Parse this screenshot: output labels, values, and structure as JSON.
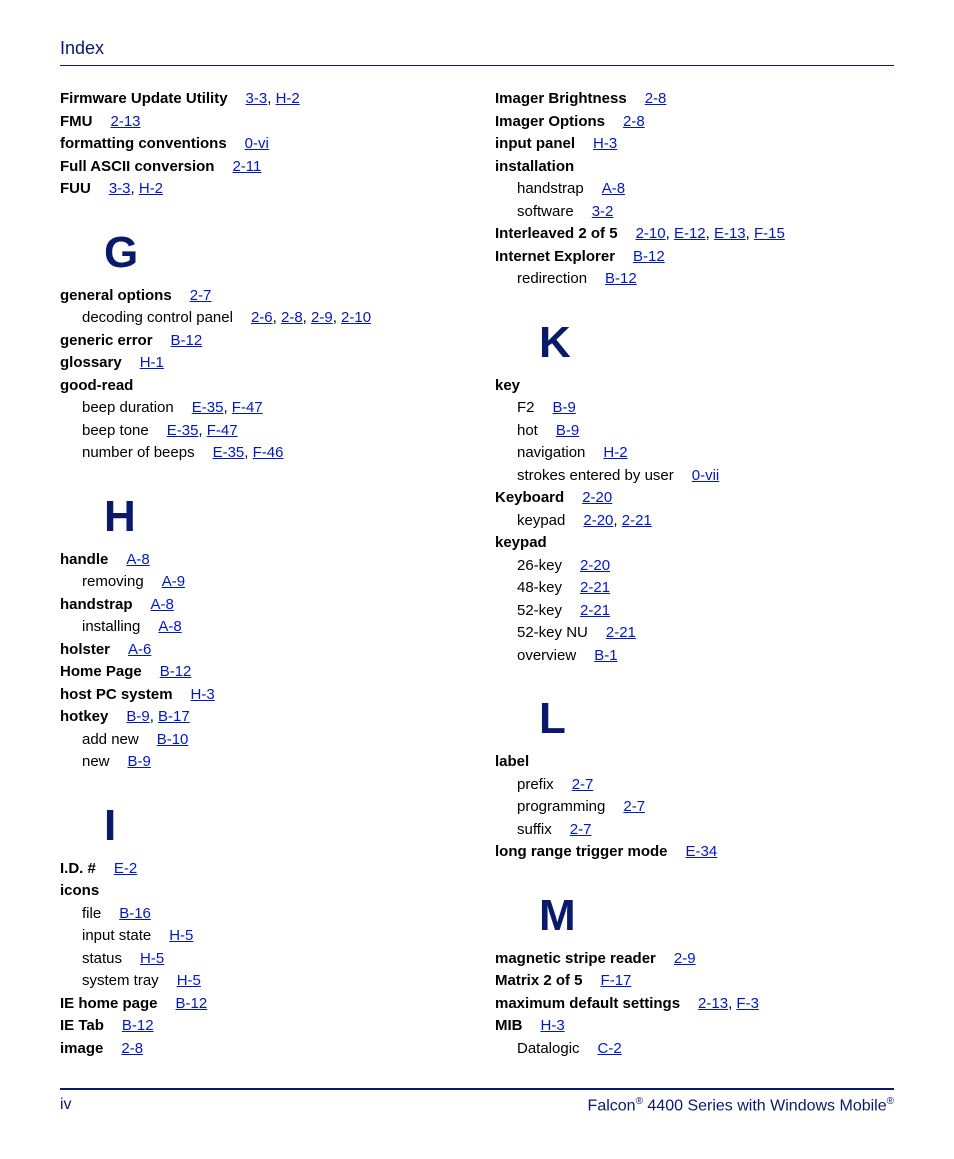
{
  "header": {
    "title": "Index"
  },
  "footer": {
    "page_num": "iv",
    "product_line": "Falcon® 4400 Series with Windows Mobile®"
  },
  "colors": {
    "navy": "#0a1a6a",
    "link": "#0018c4",
    "text": "#000000",
    "bg": "#ffffff"
  },
  "typography": {
    "heading_size_pt": 14,
    "letter_size_pt": 33,
    "body_size_pt": 11,
    "footer_size_pt": 12
  },
  "left_column": {
    "pre_entries": [
      {
        "term": "Firmware Update Utility",
        "refs": [
          "3-3",
          "H-2"
        ]
      },
      {
        "term": "FMU",
        "refs": [
          "2-13"
        ]
      },
      {
        "term": "formatting conventions",
        "refs": [
          "0-vi"
        ]
      },
      {
        "term": "Full ASCII conversion",
        "refs": [
          "2-11"
        ]
      },
      {
        "term": "FUU",
        "refs": [
          "3-3",
          "H-2"
        ]
      }
    ],
    "sections": [
      {
        "letter": "G",
        "entries": [
          {
            "term": "general options",
            "refs": [
              "2-7"
            ]
          },
          {
            "sub": true,
            "term": "decoding control panel",
            "refs": [
              "2-6",
              "2-8",
              "2-9",
              "2-10"
            ]
          },
          {
            "term": "generic error",
            "refs": [
              "B-12"
            ]
          },
          {
            "term": "glossary",
            "refs": [
              "H-1"
            ]
          },
          {
            "term": "good-read",
            "refs": []
          },
          {
            "sub": true,
            "term": "beep duration",
            "refs": [
              "E-35",
              "F-47"
            ]
          },
          {
            "sub": true,
            "term": "beep tone",
            "refs": [
              "E-35",
              "F-47"
            ]
          },
          {
            "sub": true,
            "term": "number of beeps",
            "refs": [
              "E-35",
              "F-46"
            ]
          }
        ]
      },
      {
        "letter": "H",
        "entries": [
          {
            "term": "handle",
            "refs": [
              "A-8"
            ]
          },
          {
            "sub": true,
            "term": "removing",
            "refs": [
              "A-9"
            ]
          },
          {
            "term": "handstrap",
            "refs": [
              "A-8"
            ]
          },
          {
            "sub": true,
            "term": "installing",
            "refs": [
              "A-8"
            ]
          },
          {
            "term": "holster",
            "refs": [
              "A-6"
            ]
          },
          {
            "term": "Home Page",
            "refs": [
              "B-12"
            ]
          },
          {
            "term": "host PC system",
            "refs": [
              "H-3"
            ]
          },
          {
            "term": "hotkey",
            "refs": [
              "B-9",
              "B-17"
            ]
          },
          {
            "sub": true,
            "term": "add new",
            "refs": [
              "B-10"
            ]
          },
          {
            "sub": true,
            "term": "new",
            "refs": [
              "B-9"
            ]
          }
        ]
      },
      {
        "letter": "I",
        "entries": [
          {
            "term": "I.D. #",
            "refs": [
              "E-2"
            ]
          },
          {
            "term": "icons",
            "refs": []
          },
          {
            "sub": true,
            "term": "file",
            "refs": [
              "B-16"
            ]
          },
          {
            "sub": true,
            "term": "input state",
            "refs": [
              "H-5"
            ]
          },
          {
            "sub": true,
            "term": "status",
            "refs": [
              "H-5"
            ]
          },
          {
            "sub": true,
            "term": "system tray",
            "refs": [
              "H-5"
            ]
          },
          {
            "term": "IE home page",
            "refs": [
              "B-12"
            ]
          },
          {
            "term": "IE Tab",
            "refs": [
              "B-12"
            ]
          },
          {
            "term": "image",
            "refs": [
              "2-8"
            ]
          }
        ]
      }
    ]
  },
  "right_column": {
    "pre_entries": [
      {
        "term": "Imager Brightness",
        "refs": [
          "2-8"
        ]
      },
      {
        "term": "Imager Options",
        "refs": [
          "2-8"
        ]
      },
      {
        "term": "input panel",
        "refs": [
          "H-3"
        ]
      },
      {
        "term": "installation",
        "refs": []
      },
      {
        "sub": true,
        "term": "handstrap",
        "refs": [
          "A-8"
        ]
      },
      {
        "sub": true,
        "term": "software",
        "refs": [
          "3-2"
        ]
      },
      {
        "term": "Interleaved 2 of 5",
        "refs": [
          "2-10",
          "E-12",
          "E-13",
          "F-15"
        ]
      },
      {
        "term": "Internet Explorer",
        "refs": [
          "B-12"
        ]
      },
      {
        "sub": true,
        "term": "redirection",
        "refs": [
          "B-12"
        ]
      }
    ],
    "sections": [
      {
        "letter": "K",
        "entries": [
          {
            "term": "key",
            "refs": []
          },
          {
            "sub": true,
            "term": "F2",
            "refs": [
              "B-9"
            ]
          },
          {
            "sub": true,
            "term": "hot",
            "refs": [
              "B-9"
            ]
          },
          {
            "sub": true,
            "term": "navigation",
            "refs": [
              "H-2"
            ]
          },
          {
            "sub": true,
            "term": "strokes entered by user",
            "refs": [
              "0-vii"
            ]
          },
          {
            "term": "Keyboard",
            "refs": [
              "2-20"
            ]
          },
          {
            "sub": true,
            "term": "keypad",
            "refs": [
              "2-20",
              "2-21"
            ]
          },
          {
            "term": "keypad",
            "refs": []
          },
          {
            "sub": true,
            "term": "26-key",
            "refs": [
              "2-20"
            ]
          },
          {
            "sub": true,
            "term": "48-key",
            "refs": [
              "2-21"
            ]
          },
          {
            "sub": true,
            "term": "52-key",
            "refs": [
              "2-21"
            ]
          },
          {
            "sub": true,
            "term": "52-key NU",
            "refs": [
              "2-21"
            ]
          },
          {
            "sub": true,
            "term": "overview",
            "refs": [
              "B-1"
            ]
          }
        ]
      },
      {
        "letter": "L",
        "entries": [
          {
            "term": "label",
            "refs": []
          },
          {
            "sub": true,
            "term": "prefix",
            "refs": [
              "2-7"
            ]
          },
          {
            "sub": true,
            "term": "programming",
            "refs": [
              "2-7"
            ]
          },
          {
            "sub": true,
            "term": "suffix",
            "refs": [
              "2-7"
            ]
          },
          {
            "term": "long range trigger mode",
            "refs": [
              "E-34"
            ]
          }
        ]
      },
      {
        "letter": "M",
        "entries": [
          {
            "term": "magnetic stripe reader",
            "refs": [
              "2-9"
            ]
          },
          {
            "term": "Matrix 2 of 5",
            "refs": [
              "F-17"
            ]
          },
          {
            "term": "maximum default settings",
            "refs": [
              "2-13",
              "F-3"
            ]
          },
          {
            "term": "MIB",
            "refs": [
              "H-3"
            ]
          },
          {
            "sub": true,
            "term": "Datalogic",
            "refs": [
              "C-2"
            ]
          }
        ]
      }
    ]
  }
}
